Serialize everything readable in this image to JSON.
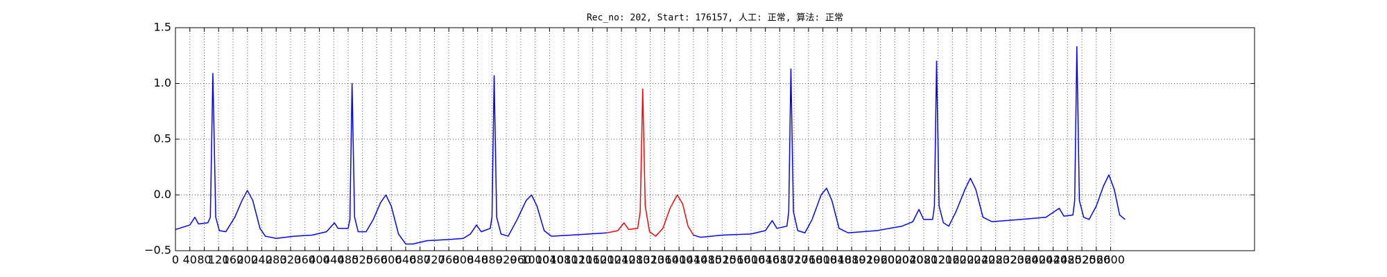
{
  "chart_data": {
    "type": "line",
    "title": "Rec_no: 202, Start: 176157, 人工: 正常, 算法: 正常",
    "xlim": [
      0,
      3000
    ],
    "ylim": [
      -0.5,
      1.5
    ],
    "xticks": [
      0,
      40,
      80,
      120,
      160,
      200,
      240,
      280,
      320,
      360,
      400,
      440,
      480,
      520,
      560,
      600,
      640,
      680,
      720,
      760,
      800,
      840,
      880,
      920,
      960,
      1000,
      1040,
      1080,
      1120,
      1160,
      1200,
      1240,
      1280,
      1320,
      1360,
      1400,
      1440,
      1480,
      1520,
      1560,
      1600,
      1640,
      1680,
      1720,
      1760,
      1800,
      1840,
      1880,
      1920,
      1960,
      2000,
      2040,
      2080,
      2120,
      2160,
      2200,
      2240,
      2280,
      2320,
      2360,
      2400,
      2440,
      2480,
      2520,
      2560,
      2600
    ],
    "yticks": [
      {
        "value": -0.5,
        "label": "−0.5"
      },
      {
        "value": 0.0,
        "label": "0.0"
      },
      0.5,
      {
        "value": 1.0,
        "label": "1.0"
      },
      1.5
    ],
    "grid": true,
    "series": [
      {
        "color": "#0000ff",
        "x": [
          0,
          20,
          40,
          54,
          64,
          90,
          97,
          104,
          112,
          122,
          140,
          165,
          185,
          200,
          215,
          235,
          250,
          280,
          330,
          380,
          420,
          442,
          452,
          480,
          485,
          491,
          498,
          508,
          530,
          550,
          570,
          585,
          600,
          620,
          640,
          660,
          700,
          760,
          800,
          820,
          837,
          850,
          875,
          880,
          886,
          893,
          905,
          925,
          950,
          975,
          990,
          1005,
          1025,
          1045,
          1100,
          1150,
          1200
        ],
        "values": [
          -0.31,
          -0.29,
          -0.27,
          -0.2,
          -0.26,
          -0.25,
          -0.2,
          1.09,
          -0.2,
          -0.32,
          -0.33,
          -0.2,
          -0.05,
          0.04,
          -0.05,
          -0.3,
          -0.37,
          -0.39,
          -0.37,
          -0.36,
          -0.33,
          -0.25,
          -0.3,
          -0.3,
          -0.22,
          1.0,
          -0.2,
          -0.33,
          -0.33,
          -0.22,
          -0.07,
          0.0,
          -0.1,
          -0.35,
          -0.44,
          -0.44,
          -0.41,
          -0.4,
          -0.39,
          -0.35,
          -0.27,
          -0.33,
          -0.3,
          -0.2,
          1.07,
          -0.2,
          -0.35,
          -0.37,
          -0.22,
          -0.05,
          0.0,
          -0.1,
          -0.32,
          -0.37,
          -0.36,
          -0.35,
          -0.34
        ]
      },
      {
        "color": "#ff0000",
        "x": [
          1200,
          1230,
          1247,
          1260,
          1285,
          1292,
          1299,
          1306,
          1318,
          1335,
          1355,
          1375,
          1395,
          1410,
          1425,
          1440
        ],
        "values": [
          -0.34,
          -0.32,
          -0.25,
          -0.31,
          -0.3,
          -0.15,
          0.95,
          -0.1,
          -0.33,
          -0.37,
          -0.3,
          -0.12,
          0.0,
          -0.08,
          -0.28,
          -0.36
        ]
      },
      {
        "color": "#0000ff",
        "x": [
          1440,
          1460,
          1520,
          1600,
          1640,
          1659,
          1672,
          1700,
          1705,
          1711,
          1718,
          1730,
          1750,
          1770,
          1795,
          1810,
          1825,
          1845,
          1870,
          1950,
          2020,
          2050,
          2067,
          2080,
          2105,
          2110,
          2116,
          2123,
          2135,
          2150,
          2170,
          2195,
          2210,
          2225,
          2245,
          2270,
          2350,
          2420,
          2457,
          2470,
          2495,
          2500,
          2506,
          2513,
          2525,
          2540,
          2560,
          2580,
          2595,
          2610,
          2625,
          2640
        ],
        "values": [
          -0.36,
          -0.38,
          -0.36,
          -0.35,
          -0.32,
          -0.23,
          -0.3,
          -0.28,
          -0.15,
          1.13,
          -0.15,
          -0.32,
          -0.34,
          -0.22,
          0.0,
          0.06,
          -0.05,
          -0.3,
          -0.34,
          -0.32,
          -0.28,
          -0.24,
          -0.13,
          -0.22,
          -0.22,
          -0.1,
          1.2,
          -0.1,
          -0.25,
          -0.28,
          -0.15,
          0.05,
          0.15,
          0.05,
          -0.2,
          -0.24,
          -0.22,
          -0.2,
          -0.12,
          -0.19,
          -0.18,
          -0.05,
          1.33,
          -0.05,
          -0.2,
          -0.22,
          -0.1,
          0.08,
          0.18,
          0.05,
          -0.18,
          -0.22
        ]
      }
    ]
  }
}
